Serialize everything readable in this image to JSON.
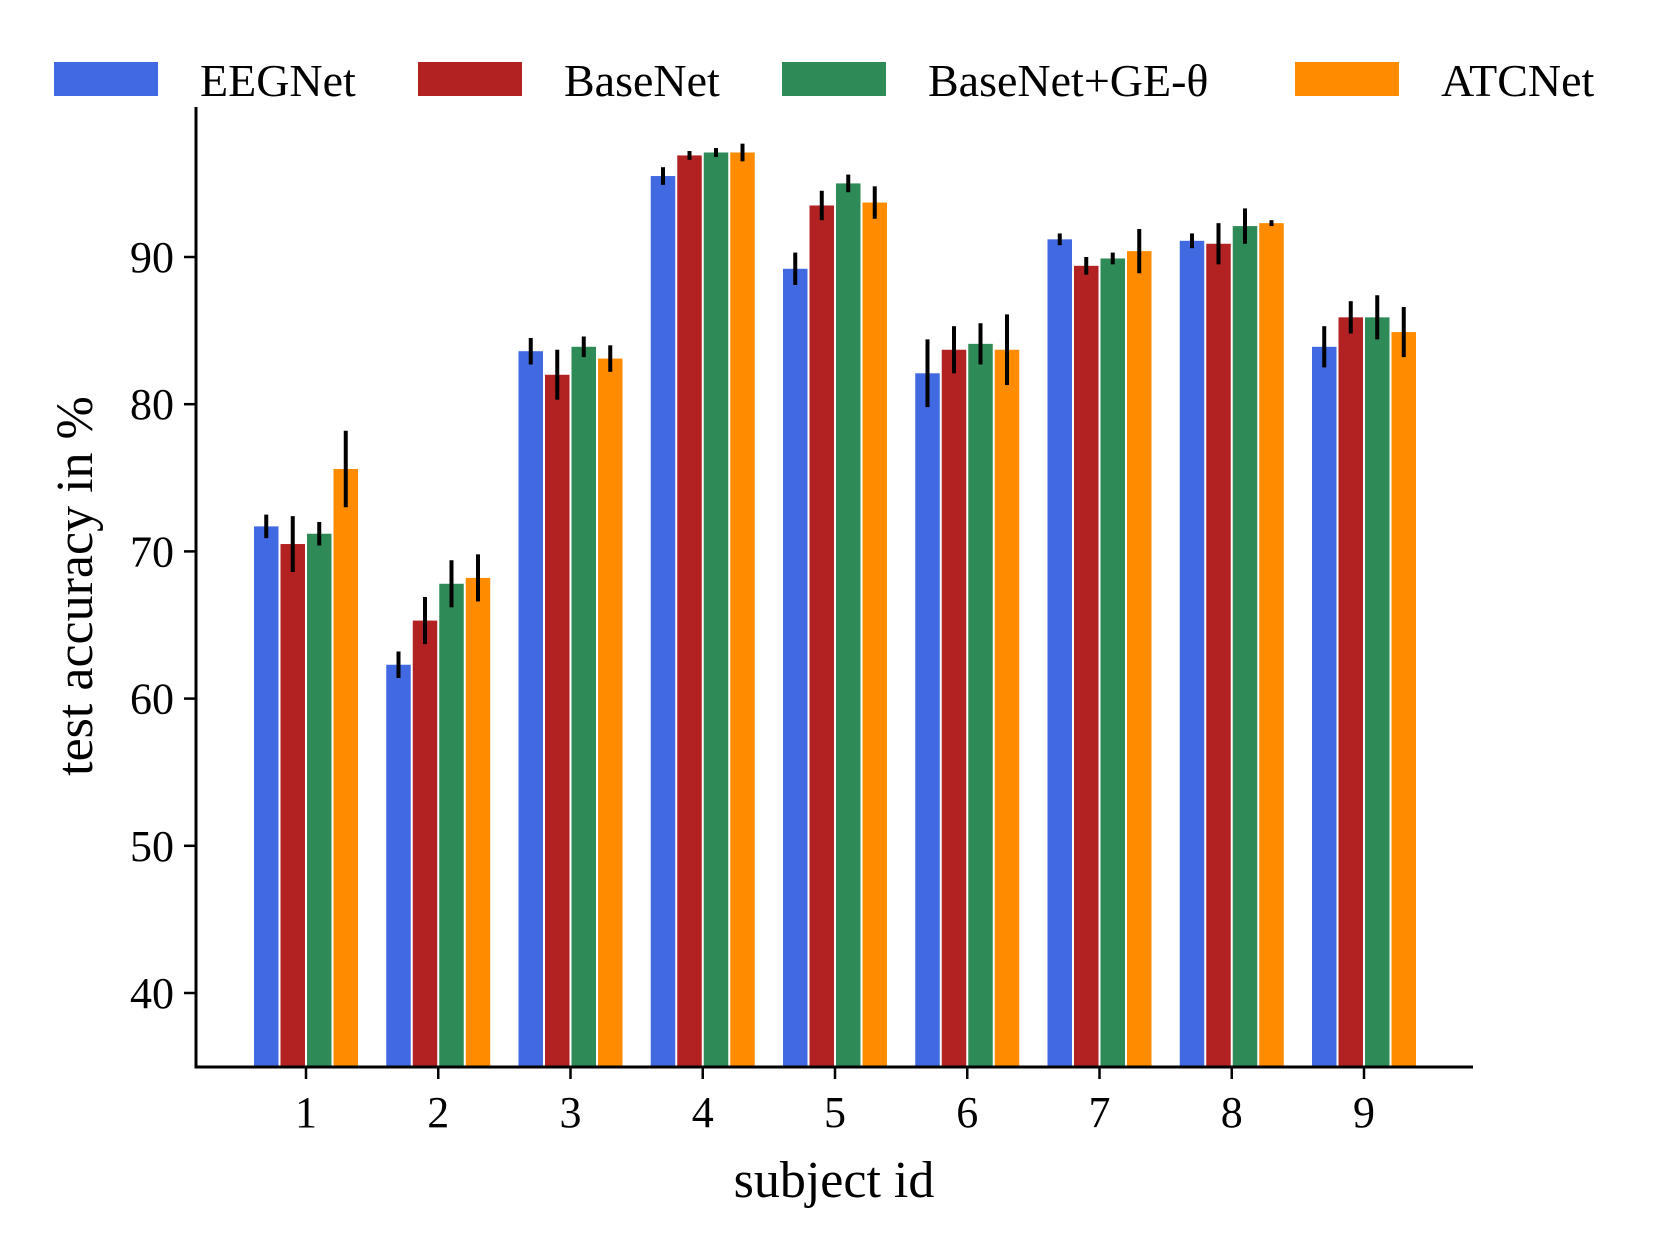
{
  "chart_data": {
    "type": "bar",
    "title": "",
    "xlabel": "subject id",
    "ylabel": "test accuracy in %",
    "ylim": [
      35,
      98
    ],
    "yticks": [
      40,
      50,
      60,
      70,
      80,
      90
    ],
    "categories": [
      "1",
      "2",
      "3",
      "4",
      "5",
      "6",
      "7",
      "8",
      "9"
    ],
    "legend_position": "top",
    "series": [
      {
        "name": "EEGNet",
        "color": "#4169E1",
        "values": [
          71.7,
          62.3,
          83.6,
          95.5,
          89.2,
          82.1,
          91.2,
          91.1,
          83.9
        ],
        "errors": [
          0.8,
          0.9,
          0.9,
          0.6,
          1.1,
          2.3,
          0.4,
          0.5,
          1.4
        ]
      },
      {
        "name": "BaseNet",
        "color": "#B22222",
        "values": [
          70.5,
          65.3,
          82.0,
          96.9,
          93.5,
          83.7,
          89.4,
          90.9,
          85.9
        ],
        "errors": [
          1.9,
          1.6,
          1.7,
          0.3,
          1.0,
          1.6,
          0.6,
          1.4,
          1.1
        ]
      },
      {
        "name": "BaseNet+GE-θ",
        "color": "#2E8B57",
        "values": [
          71.2,
          67.8,
          83.9,
          97.1,
          95.0,
          84.1,
          89.9,
          92.1,
          85.9
        ],
        "errors": [
          0.8,
          1.6,
          0.7,
          0.3,
          0.6,
          1.4,
          0.4,
          1.2,
          1.5
        ]
      },
      {
        "name": "ATCNet",
        "color": "#FF8C00",
        "values": [
          75.6,
          68.2,
          83.1,
          97.1,
          93.7,
          83.7,
          90.4,
          92.3,
          84.9
        ],
        "errors": [
          2.6,
          1.6,
          0.9,
          0.6,
          1.1,
          2.4,
          1.5,
          0.2,
          1.7
        ]
      }
    ]
  }
}
